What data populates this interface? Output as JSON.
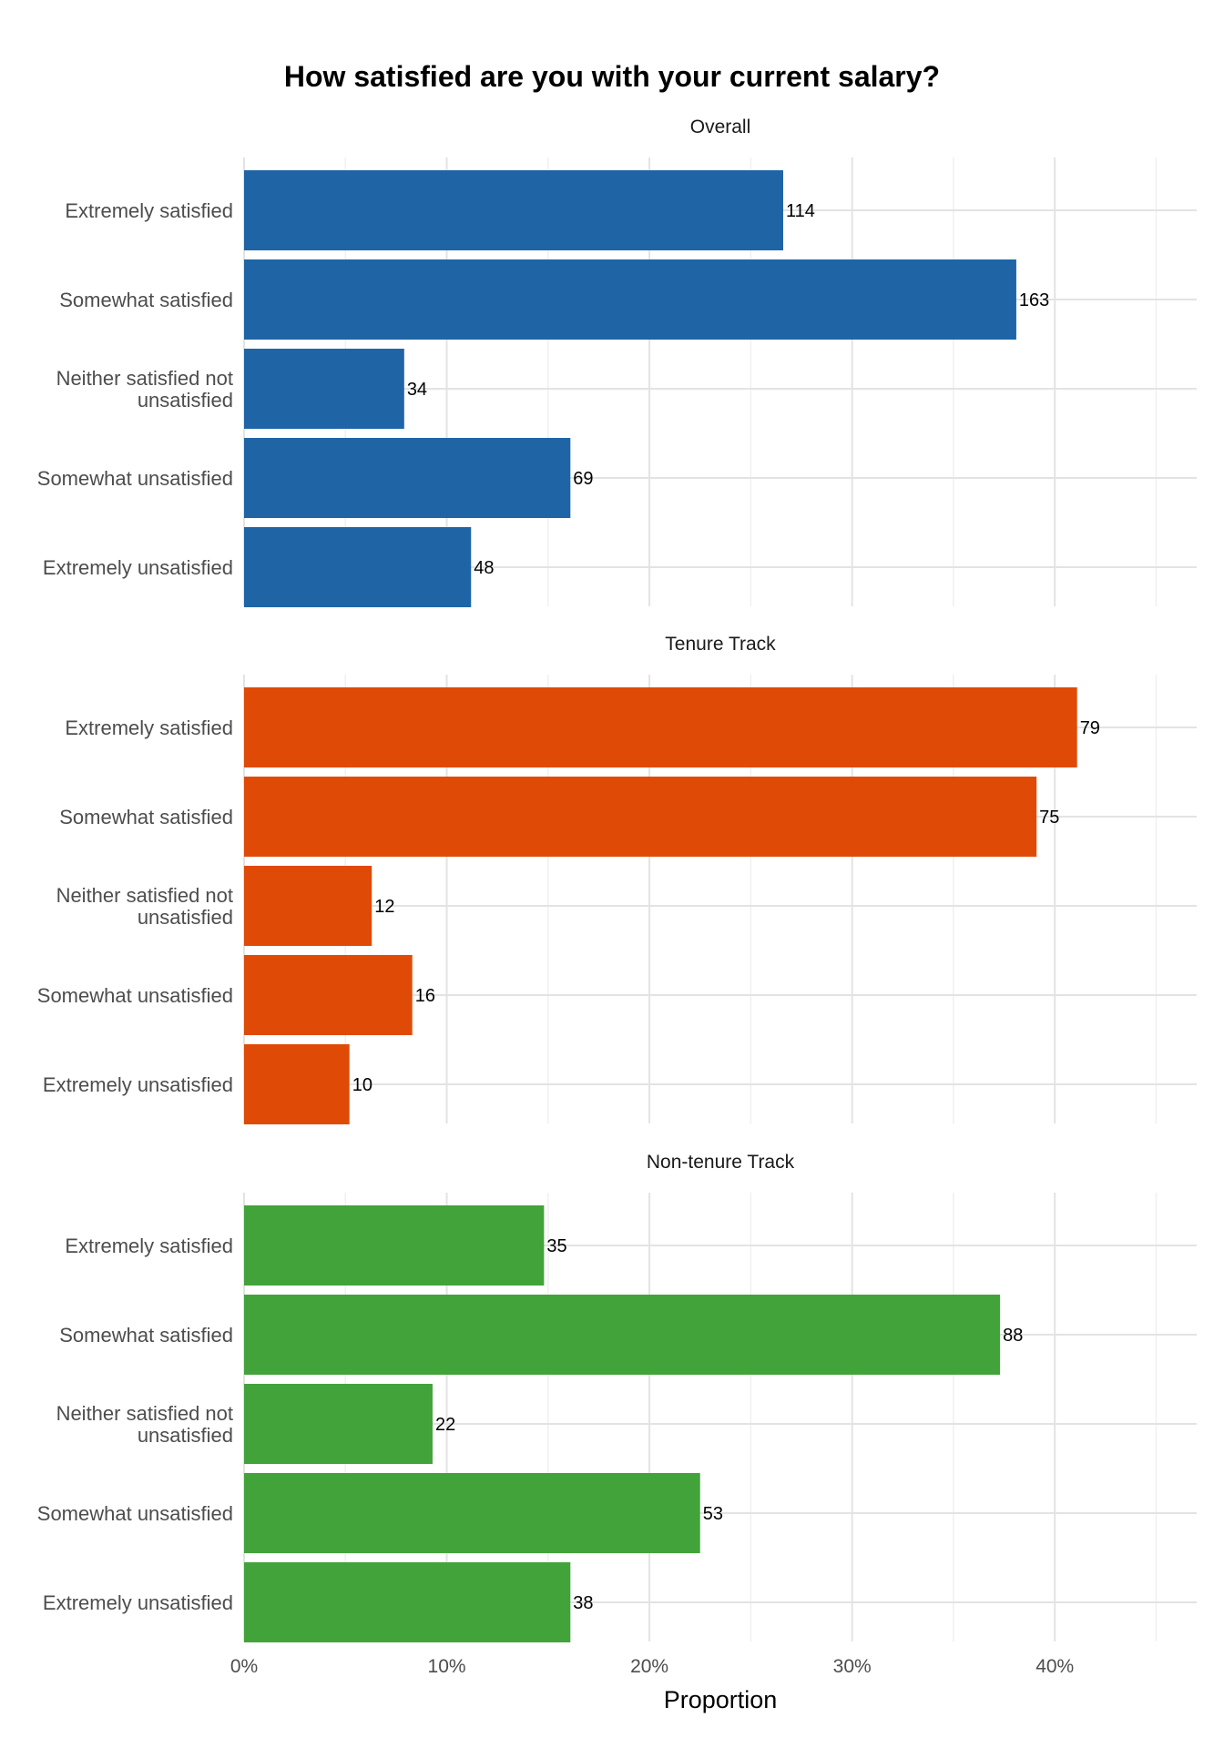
{
  "chart_data": {
    "type": "bar",
    "orientation": "horizontal",
    "title": "How satisfied are you with your current salary?",
    "xlabel": "Proportion",
    "ylabel": "",
    "xlim": [
      0,
      0.47
    ],
    "x_ticks": [
      {
        "value": 0.0,
        "label": "0%"
      },
      {
        "value": 0.1,
        "label": "10%"
      },
      {
        "value": 0.2,
        "label": "20%"
      },
      {
        "value": 0.3,
        "label": "30%"
      },
      {
        "value": 0.4,
        "label": "40%"
      }
    ],
    "grid": true,
    "categories": [
      "Extremely satisfied",
      "Somewhat satisfied",
      "Neither satisfied not unsatisfied",
      "Somewhat unsatisfied",
      "Extremely unsatisfied"
    ],
    "category_lines": [
      [
        "Extremely satisfied"
      ],
      [
        "Somewhat satisfied"
      ],
      [
        "Neither satisfied not",
        "unsatisfied"
      ],
      [
        "Somewhat unsatisfied"
      ],
      [
        "Extremely unsatisfied"
      ]
    ],
    "panels": [
      {
        "title": "Overall",
        "color": "#1f65a6",
        "counts": [
          114,
          163,
          34,
          69,
          48
        ],
        "proportions": [
          0.266,
          0.381,
          0.079,
          0.161,
          0.112
        ]
      },
      {
        "title": "Tenure Track",
        "color": "#df4b07",
        "counts": [
          79,
          75,
          12,
          16,
          10
        ],
        "proportions": [
          0.411,
          0.391,
          0.063,
          0.083,
          0.052
        ]
      },
      {
        "title": "Non-tenure Track",
        "color": "#42a33a",
        "counts": [
          35,
          88,
          22,
          53,
          38
        ],
        "proportions": [
          0.148,
          0.373,
          0.093,
          0.225,
          0.161
        ]
      }
    ]
  }
}
